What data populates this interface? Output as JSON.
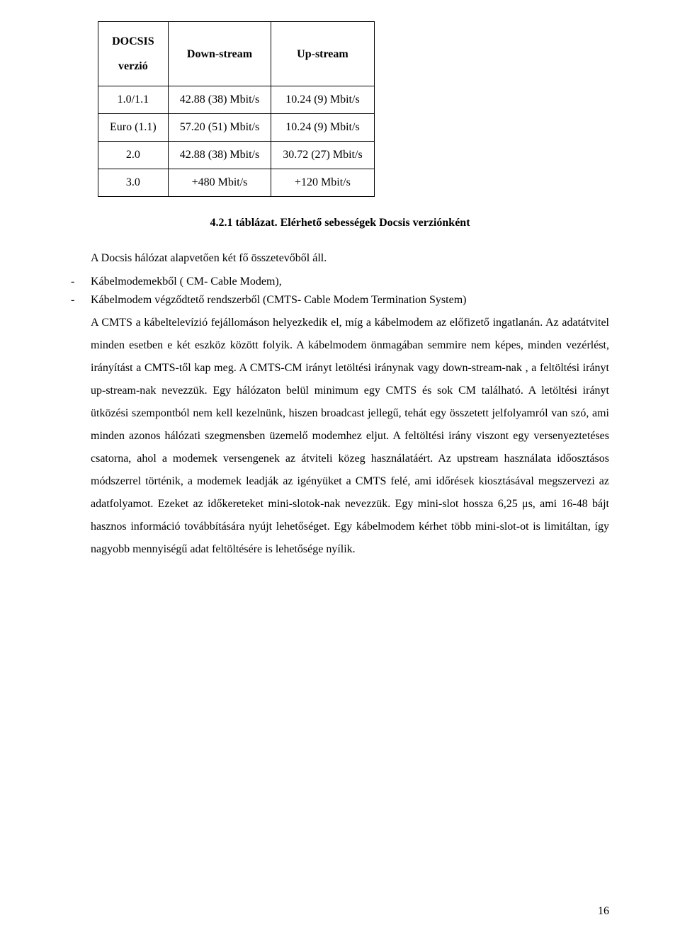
{
  "table": {
    "header": {
      "col1_line1": "DOCSIS",
      "col1_line2": "verzió",
      "col2": "Down-stream",
      "col3": "Up-stream"
    },
    "rows": [
      {
        "version": "1.0/1.1",
        "down": "42.88 (38) Mbit/s",
        "up": "10.24 (9) Mbit/s"
      },
      {
        "version": "Euro (1.1)",
        "down": "57.20 (51) Mbit/s",
        "up": "10.24 (9) Mbit/s"
      },
      {
        "version": "2.0",
        "down": "42.88 (38) Mbit/s",
        "up": "30.72 (27) Mbit/s"
      },
      {
        "version": "3.0",
        "down": "+480 Mbit/s",
        "up": "+120 Mbit/s"
      }
    ],
    "caption": "4.2.1 táblázat. Elérhető sebességek Docsis verziónként"
  },
  "intro": "A Docsis hálózat alapvetően két fő összetevőből áll.",
  "bullet1": "Kábelmodemekből ( CM- Cable Modem),",
  "bullet2": "Kábelmodem végződtető rendszerből (CMTS- Cable Modem Termination System)",
  "body": "A CMTS a kábeltelevízió fejállomáson helyezkedik el, míg a kábelmodem az előfizető ingatlanán. Az adatátvitel minden esetben e két eszköz között folyik. A kábelmodem önmagában semmire nem képes, minden vezérlést, irányítást a CMTS-től kap meg. A CMTS-CM irányt letöltési iránynak vagy down-stream-nak , a feltöltési irányt up-stream-nak nevezzük. Egy hálózaton belül minimum egy CMTS és sok CM található. A letöltési irányt ütközési szempontból nem kell kezelnünk, hiszen broadcast jellegű, tehát egy összetett jelfolyamról van szó, ami minden azonos hálózati szegmensben üzemelő modemhez eljut. A feltöltési irány viszont egy versenyeztetéses csatorna, ahol a modemek versengenek az átviteli közeg használatáért. Az upstream használata időosztásos módszerrel történik, a modemek leadják az igényüket a CMTS felé, ami időrések kiosztásával megszervezi az adatfolyamot. Ezeket az időkereteket mini-slotok-nak nevezzük. Egy mini-slot hossza 6,25 μs, ami 16-48 bájt hasznos információ továbbítására nyújt lehetőséget. Egy kábelmodem kérhet több mini-slot-ot is limitáltan, így nagyobb mennyiségű adat feltöltésére is lehetősége nyílik.",
  "pageNumber": "16"
}
